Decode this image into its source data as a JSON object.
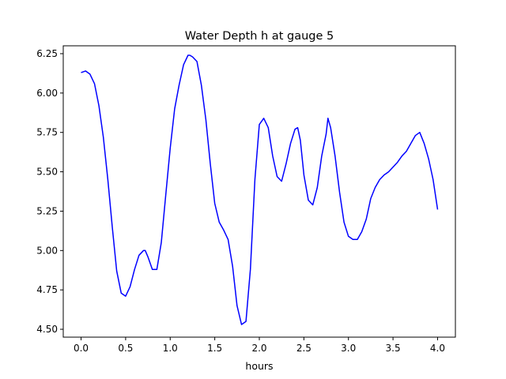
{
  "chart_data": {
    "type": "line",
    "title": "Water Depth h at gauge 5",
    "xlabel": "hours",
    "ylabel": "",
    "xlim": [
      -0.2,
      4.2
    ],
    "ylim": [
      4.45,
      6.3
    ],
    "xticks": [
      0.0,
      0.5,
      1.0,
      1.5,
      2.0,
      2.5,
      3.0,
      3.5,
      4.0
    ],
    "xtick_labels": [
      "0.0",
      "0.5",
      "1.0",
      "1.5",
      "2.0",
      "2.5",
      "3.0",
      "3.5",
      "4.0"
    ],
    "yticks": [
      4.5,
      4.75,
      5.0,
      5.25,
      5.5,
      5.75,
      6.0,
      6.25
    ],
    "ytick_labels": [
      "4.50",
      "4.75",
      "5.00",
      "5.25",
      "5.50",
      "5.75",
      "6.00",
      "6.25"
    ],
    "grid": false,
    "series": [
      {
        "color": "#0000ff",
        "x": [
          0.0,
          0.05,
          0.1,
          0.15,
          0.2,
          0.25,
          0.3,
          0.35,
          0.4,
          0.45,
          0.5,
          0.55,
          0.6,
          0.65,
          0.7,
          0.72,
          0.75,
          0.8,
          0.85,
          0.9,
          0.95,
          1.0,
          1.05,
          1.1,
          1.15,
          1.2,
          1.22,
          1.25,
          1.3,
          1.35,
          1.4,
          1.45,
          1.5,
          1.55,
          1.6,
          1.65,
          1.7,
          1.75,
          1.8,
          1.85,
          1.9,
          1.95,
          2.0,
          2.05,
          2.1,
          2.15,
          2.2,
          2.25,
          2.3,
          2.35,
          2.4,
          2.43,
          2.46,
          2.5,
          2.55,
          2.6,
          2.65,
          2.7,
          2.75,
          2.77,
          2.8,
          2.85,
          2.9,
          2.95,
          3.0,
          3.05,
          3.1,
          3.15,
          3.2,
          3.25,
          3.3,
          3.35,
          3.4,
          3.45,
          3.5,
          3.55,
          3.6,
          3.65,
          3.7,
          3.75,
          3.8,
          3.85,
          3.9,
          3.95,
          4.0
        ],
        "y": [
          6.13,
          6.14,
          6.12,
          6.06,
          5.92,
          5.72,
          5.45,
          5.15,
          4.87,
          4.73,
          4.71,
          4.77,
          4.88,
          4.97,
          5.0,
          5.0,
          4.96,
          4.88,
          4.88,
          5.05,
          5.35,
          5.65,
          5.9,
          6.05,
          6.18,
          6.24,
          6.24,
          6.23,
          6.2,
          6.05,
          5.83,
          5.55,
          5.3,
          5.18,
          5.13,
          5.07,
          4.9,
          4.65,
          4.53,
          4.55,
          4.88,
          5.45,
          5.8,
          5.84,
          5.78,
          5.6,
          5.47,
          5.44,
          5.55,
          5.68,
          5.77,
          5.78,
          5.7,
          5.48,
          5.32,
          5.29,
          5.4,
          5.6,
          5.74,
          5.84,
          5.78,
          5.6,
          5.37,
          5.18,
          5.09,
          5.07,
          5.07,
          5.12,
          5.2,
          5.33,
          5.4,
          5.45,
          5.48,
          5.5,
          5.53,
          5.56,
          5.6,
          5.63,
          5.68,
          5.73,
          5.75,
          5.68,
          5.58,
          5.45,
          5.26
        ]
      }
    ]
  }
}
